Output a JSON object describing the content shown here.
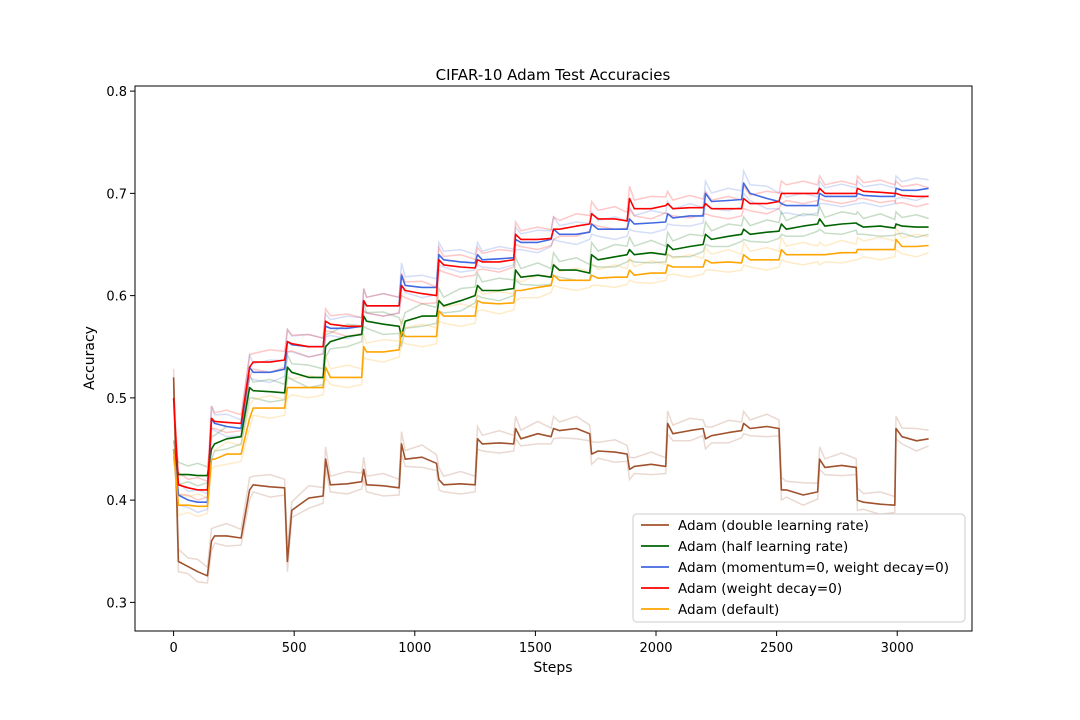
{
  "chart_data": {
    "type": "line",
    "title": "CIFAR-10 Adam Test Accuracies",
    "xlabel": "Steps",
    "ylabel": "Accuracy",
    "xlim": [
      -160,
      3310
    ],
    "ylim": [
      0.272,
      0.805
    ],
    "xticks": [
      0,
      500,
      1000,
      1500,
      2000,
      2500,
      3000
    ],
    "yticks": [
      0.3,
      0.4,
      0.5,
      0.6,
      0.7,
      0.8
    ],
    "xtick_labels": [
      "0",
      "500",
      "1000",
      "1500",
      "2000",
      "2500",
      "3000"
    ],
    "ytick_labels": [
      "0.3",
      "0.4",
      "0.5",
      "0.6",
      "0.7",
      "0.8"
    ],
    "grid": false,
    "legend_position": "lower-right",
    "x": [
      0,
      20,
      60,
      100,
      140,
      157,
      170,
      220,
      280,
      315,
      330,
      400,
      460,
      472,
      490,
      560,
      620,
      630,
      650,
      720,
      780,
      788,
      800,
      870,
      935,
      945,
      960,
      1030,
      1090,
      1100,
      1120,
      1190,
      1250,
      1260,
      1280,
      1350,
      1410,
      1418,
      1440,
      1510,
      1565,
      1575,
      1600,
      1670,
      1725,
      1733,
      1760,
      1830,
      1880,
      1890,
      1910,
      1980,
      2040,
      2048,
      2070,
      2140,
      2195,
      2205,
      2230,
      2300,
      2355,
      2363,
      2390,
      2460,
      2510,
      2520,
      2540,
      2610,
      2670,
      2678,
      2700,
      2770,
      2830,
      2835,
      2860,
      2930,
      2990,
      2995,
      3020,
      3080,
      3130
    ],
    "series": [
      {
        "name": "Adam (double learning rate)",
        "color": "#a0522d",
        "values": [
          0.52,
          0.34,
          0.335,
          0.33,
          0.326,
          0.36,
          0.365,
          0.365,
          0.363,
          0.41,
          0.415,
          0.413,
          0.412,
          0.34,
          0.39,
          0.402,
          0.404,
          0.44,
          0.415,
          0.416,
          0.418,
          0.43,
          0.415,
          0.414,
          0.412,
          0.455,
          0.44,
          0.442,
          0.436,
          0.42,
          0.415,
          0.416,
          0.415,
          0.46,
          0.455,
          0.456,
          0.455,
          0.47,
          0.46,
          0.465,
          0.462,
          0.47,
          0.468,
          0.47,
          0.465,
          0.445,
          0.448,
          0.447,
          0.445,
          0.43,
          0.433,
          0.435,
          0.433,
          0.475,
          0.465,
          0.468,
          0.47,
          0.46,
          0.463,
          0.466,
          0.468,
          0.475,
          0.47,
          0.472,
          0.47,
          0.41,
          0.41,
          0.405,
          0.408,
          0.44,
          0.432,
          0.434,
          0.432,
          0.4,
          0.398,
          0.396,
          0.395,
          0.47,
          0.462,
          0.458,
          0.46
        ]
      },
      {
        "name": "Adam (half learning rate)",
        "color": "#006400",
        "values": [
          0.45,
          0.425,
          0.425,
          0.424,
          0.424,
          0.45,
          0.455,
          0.46,
          0.462,
          0.51,
          0.507,
          0.506,
          0.505,
          0.53,
          0.525,
          0.52,
          0.52,
          0.55,
          0.555,
          0.56,
          0.562,
          0.58,
          0.575,
          0.572,
          0.57,
          0.56,
          0.575,
          0.58,
          0.58,
          0.595,
          0.59,
          0.595,
          0.6,
          0.61,
          0.605,
          0.605,
          0.607,
          0.625,
          0.618,
          0.62,
          0.618,
          0.63,
          0.625,
          0.625,
          0.622,
          0.64,
          0.635,
          0.638,
          0.64,
          0.645,
          0.64,
          0.642,
          0.64,
          0.65,
          0.645,
          0.648,
          0.65,
          0.66,
          0.655,
          0.658,
          0.66,
          0.665,
          0.66,
          0.662,
          0.663,
          0.67,
          0.665,
          0.668,
          0.67,
          0.675,
          0.668,
          0.67,
          0.671,
          0.67,
          0.667,
          0.668,
          0.666,
          0.67,
          0.668,
          0.667,
          0.667
        ]
      },
      {
        "name": "Adam (momentum=0, weight decay=0)",
        "color": "#4169e1",
        "values": [
          0.45,
          0.405,
          0.4,
          0.398,
          0.398,
          0.48,
          0.475,
          0.472,
          0.47,
          0.53,
          0.525,
          0.525,
          0.528,
          0.555,
          0.552,
          0.55,
          0.55,
          0.57,
          0.568,
          0.568,
          0.57,
          0.595,
          0.59,
          0.59,
          0.59,
          0.62,
          0.61,
          0.608,
          0.608,
          0.64,
          0.635,
          0.633,
          0.632,
          0.64,
          0.635,
          0.636,
          0.637,
          0.655,
          0.652,
          0.652,
          0.655,
          0.665,
          0.66,
          0.66,
          0.662,
          0.67,
          0.665,
          0.665,
          0.665,
          0.675,
          0.67,
          0.671,
          0.672,
          0.68,
          0.676,
          0.678,
          0.678,
          0.7,
          0.692,
          0.693,
          0.694,
          0.71,
          0.7,
          0.695,
          0.692,
          0.69,
          0.688,
          0.688,
          0.688,
          0.7,
          0.697,
          0.697,
          0.697,
          0.7,
          0.698,
          0.697,
          0.697,
          0.705,
          0.703,
          0.703,
          0.705
        ]
      },
      {
        "name": "Adam (weight decay=0)",
        "color": "#ff0000",
        "values": [
          0.5,
          0.415,
          0.412,
          0.41,
          0.41,
          0.48,
          0.477,
          0.476,
          0.475,
          0.53,
          0.535,
          0.535,
          0.537,
          0.555,
          0.553,
          0.55,
          0.55,
          0.575,
          0.572,
          0.57,
          0.57,
          0.595,
          0.59,
          0.59,
          0.59,
          0.61,
          0.605,
          0.602,
          0.6,
          0.635,
          0.63,
          0.628,
          0.627,
          0.635,
          0.633,
          0.633,
          0.635,
          0.66,
          0.655,
          0.655,
          0.656,
          0.665,
          0.665,
          0.668,
          0.67,
          0.68,
          0.675,
          0.675,
          0.673,
          0.695,
          0.685,
          0.685,
          0.688,
          0.69,
          0.685,
          0.686,
          0.686,
          0.69,
          0.685,
          0.685,
          0.685,
          0.695,
          0.69,
          0.69,
          0.692,
          0.7,
          0.7,
          0.7,
          0.7,
          0.705,
          0.7,
          0.7,
          0.7,
          0.705,
          0.702,
          0.701,
          0.7,
          0.7,
          0.698,
          0.697,
          0.697
        ]
      },
      {
        "name": "Adam (default)",
        "color": "#ffa500",
        "values": [
          0.45,
          0.395,
          0.395,
          0.394,
          0.394,
          0.44,
          0.44,
          0.445,
          0.445,
          0.48,
          0.49,
          0.49,
          0.49,
          0.51,
          0.51,
          0.51,
          0.51,
          0.53,
          0.52,
          0.52,
          0.52,
          0.55,
          0.545,
          0.545,
          0.547,
          0.565,
          0.56,
          0.56,
          0.56,
          0.585,
          0.58,
          0.58,
          0.58,
          0.595,
          0.593,
          0.592,
          0.593,
          0.605,
          0.605,
          0.608,
          0.61,
          0.62,
          0.615,
          0.615,
          0.615,
          0.62,
          0.617,
          0.618,
          0.618,
          0.625,
          0.62,
          0.622,
          0.622,
          0.63,
          0.628,
          0.628,
          0.628,
          0.635,
          0.632,
          0.633,
          0.632,
          0.64,
          0.635,
          0.635,
          0.635,
          0.645,
          0.64,
          0.64,
          0.64,
          0.64,
          0.64,
          0.642,
          0.642,
          0.645,
          0.645,
          0.645,
          0.645,
          0.655,
          0.648,
          0.648,
          0.649
        ]
      }
    ]
  }
}
